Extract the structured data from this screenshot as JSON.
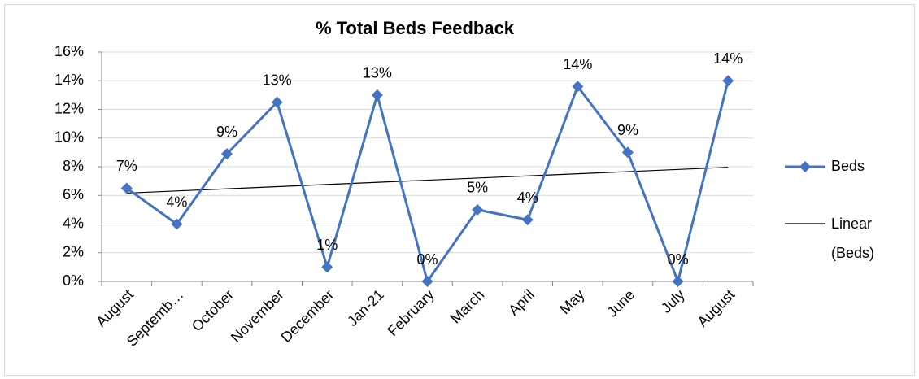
{
  "chart_data": {
    "type": "line",
    "title": "% Total Beds Feedback",
    "categories": [
      "August",
      "Septemb…",
      "October",
      "November",
      "December",
      "Jan-21",
      "February",
      "March",
      "April",
      "May",
      "June",
      "July",
      "August"
    ],
    "series": [
      {
        "name": "Beds",
        "color": "#4472c4",
        "values": [
          6.5,
          4.0,
          8.9,
          12.5,
          1.0,
          13.0,
          0,
          5.0,
          4.3,
          13.6,
          9.0,
          0,
          14.0
        ],
        "value_labels": [
          "7%",
          "4%",
          "9%",
          "13%",
          "1%",
          "13%",
          "0%",
          "5%",
          "4%",
          "14%",
          "9%",
          "0%",
          "14%"
        ]
      }
    ],
    "trendline": {
      "name": "Linear (Beds)",
      "color": "#000000",
      "values": [
        6.16,
        7.96
      ]
    },
    "ylim": [
      0,
      16
    ],
    "yticks": [
      {
        "value": 0,
        "label": "0%"
      },
      {
        "value": 2,
        "label": "2%"
      },
      {
        "value": 4,
        "label": "4%"
      },
      {
        "value": 6,
        "label": "6%"
      },
      {
        "value": 8,
        "label": "8%"
      },
      {
        "value": 10,
        "label": "10%"
      },
      {
        "value": 12,
        "label": "12%"
      },
      {
        "value": 14,
        "label": "14%"
      },
      {
        "value": 16,
        "label": "16%"
      }
    ],
    "grid": true,
    "legend": "right"
  }
}
